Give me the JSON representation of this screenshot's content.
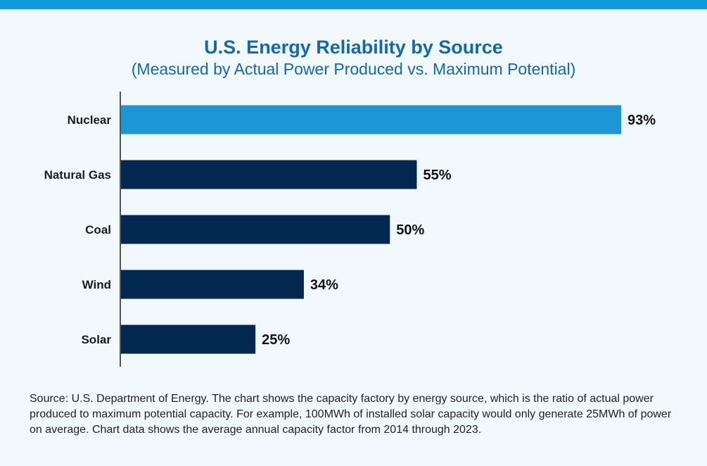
{
  "colors": {
    "band": "#119ad9",
    "title": "#1268b3",
    "highlight_bar": "#1d96d6",
    "bar": "#03284f",
    "axis": "#555555",
    "background": "#f1f9fc"
  },
  "chart_data": {
    "type": "bar",
    "orientation": "horizontal",
    "title": "U.S. Energy Reliability by Source",
    "subtitle": "(Measured by Actual Power Produced vs. Maximum Potential)",
    "categories": [
      "Nuclear",
      "Natural Gas",
      "Coal",
      "Wind",
      "Solar"
    ],
    "values": [
      93,
      55,
      50,
      34,
      25
    ],
    "value_labels": [
      "93%",
      "55%",
      "50%",
      "34%",
      "25%"
    ],
    "highlight_index": 0,
    "xlim": [
      0,
      93
    ],
    "unit": "%",
    "grid": false,
    "xlabel": "",
    "ylabel": ""
  },
  "footer": {
    "source": "Source: U.S. Department of Energy. The chart shows the capacity factory by energy source, which is the ratio of actual power produced to maximum potential capacity. For example, 100MWh of installed solar capacity would only generate 25MWh of power on average. Chart data shows the average annual capacity factor from 2014 through 2023."
  }
}
